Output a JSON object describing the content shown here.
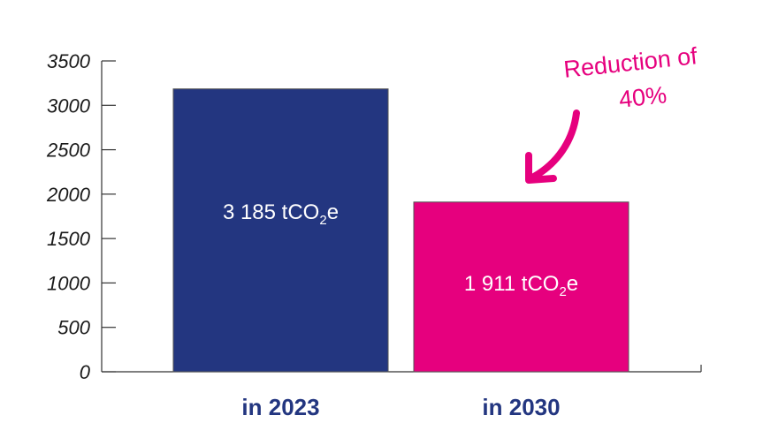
{
  "chart_data": {
    "type": "bar",
    "categories": [
      "in 2023",
      "in 2030"
    ],
    "values": [
      3185,
      1911
    ],
    "bar_labels": [
      {
        "main": "3 185 tCO",
        "sub": "2",
        "tail": "e"
      },
      {
        "main": "1 911 tCO",
        "sub": "2",
        "tail": "e"
      }
    ],
    "bar_colors": [
      "#233680",
      "#e6007e"
    ],
    "ylim": [
      0,
      3500
    ],
    "yticks": [
      0,
      500,
      1000,
      1500,
      2000,
      2500,
      3000,
      3500
    ],
    "title": "",
    "xlabel": "",
    "ylabel": "",
    "grid": false,
    "annotation": {
      "lines": [
        "Reduction of",
        "40%"
      ],
      "color": "#e6007e"
    },
    "category_label_color": "#233680"
  }
}
